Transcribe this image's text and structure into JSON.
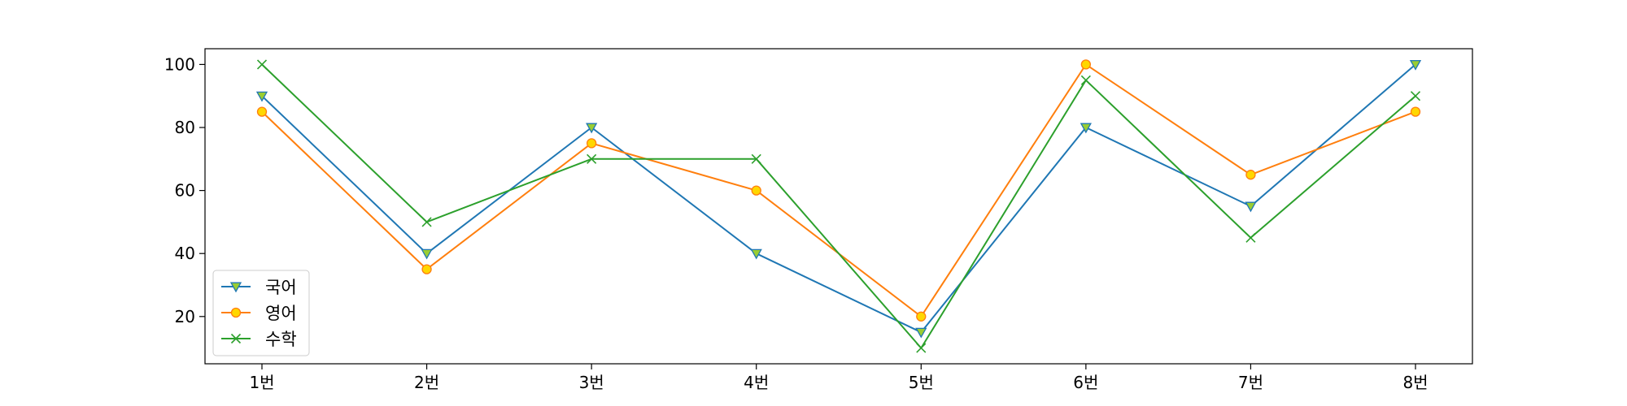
{
  "chart_data": {
    "type": "line",
    "title": "",
    "xlabel": "",
    "ylabel": "",
    "categories": [
      "1번",
      "2번",
      "3번",
      "4번",
      "5번",
      "6번",
      "7번",
      "8번"
    ],
    "ylim": [
      5,
      105
    ],
    "yticks": [
      20,
      40,
      60,
      80,
      100
    ],
    "grid": false,
    "legend_position": "lower-left",
    "series": [
      {
        "name": "국어",
        "values": [
          90,
          40,
          80,
          40,
          15,
          80,
          55,
          100
        ],
        "color": "#1f77b4",
        "marker": "triangle-down",
        "marker_face": "#9acd32",
        "marker_edge": "#1f77b4"
      },
      {
        "name": "영어",
        "values": [
          85,
          35,
          75,
          60,
          20,
          100,
          65,
          85
        ],
        "color": "#ff7f0e",
        "marker": "circle",
        "marker_face": "#ffd700",
        "marker_edge": "#ff7f0e"
      },
      {
        "name": "수학",
        "values": [
          100,
          50,
          70,
          70,
          10,
          95,
          45,
          90
        ],
        "color": "#2ca02c",
        "marker": "x",
        "marker_face": "#2ca02c",
        "marker_edge": "#2ca02c"
      }
    ]
  }
}
